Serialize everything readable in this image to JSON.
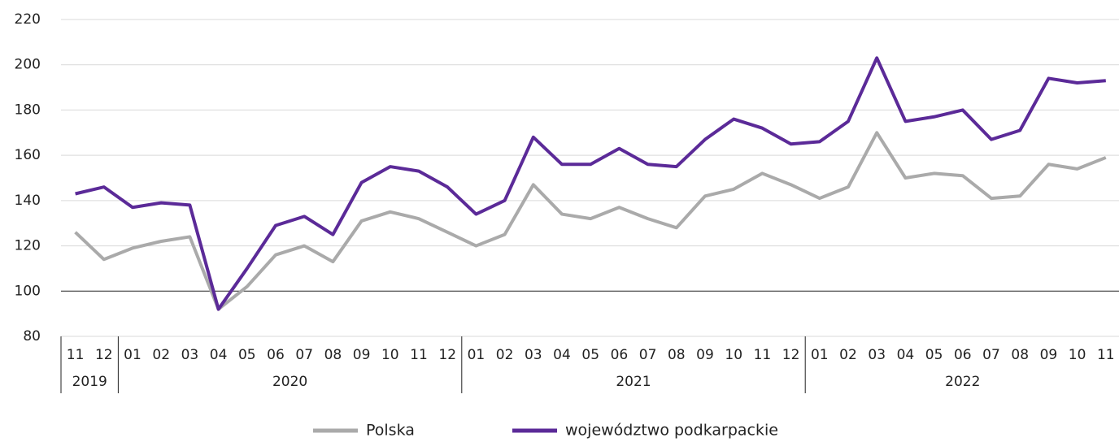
{
  "chart_data": {
    "type": "line",
    "categories": [
      "11",
      "12",
      "01",
      "02",
      "03",
      "04",
      "05",
      "06",
      "07",
      "08",
      "09",
      "10",
      "11",
      "12",
      "01",
      "02",
      "03",
      "04",
      "05",
      "06",
      "07",
      "08",
      "09",
      "10",
      "11",
      "12",
      "01",
      "02",
      "03",
      "04",
      "05",
      "06",
      "07",
      "08",
      "09",
      "10",
      "11"
    ],
    "category_groups": [
      {
        "label": "2019",
        "size": 2
      },
      {
        "label": "2020",
        "size": 12
      },
      {
        "label": "2021",
        "size": 12
      },
      {
        "label": "2022",
        "size": 11
      }
    ],
    "series": [
      {
        "name": "Polska",
        "color": "#aaaaaa",
        "values": [
          126,
          114,
          119,
          122,
          124,
          92,
          102,
          116,
          120,
          113,
          131,
          135,
          132,
          126,
          120,
          125,
          147,
          134,
          132,
          137,
          132,
          128,
          142,
          145,
          152,
          147,
          141,
          146,
          170,
          150,
          152,
          151,
          141,
          142,
          156,
          154,
          159
        ]
      },
      {
        "name": "województwo podkarpackie",
        "color": "#5b2a98",
        "values": [
          143,
          146,
          137,
          139,
          138,
          92,
          110,
          129,
          133,
          125,
          148,
          155,
          153,
          146,
          134,
          140,
          168,
          156,
          156,
          163,
          156,
          155,
          167,
          176,
          172,
          165,
          166,
          175,
          203,
          175,
          177,
          180,
          167,
          171,
          194,
          192,
          193
        ]
      }
    ],
    "ylim": [
      80,
      220
    ],
    "yticks": [
      80,
      100,
      120,
      140,
      160,
      180,
      200,
      220
    ],
    "baseline": 100,
    "grid": true,
    "legend": "bottom"
  }
}
